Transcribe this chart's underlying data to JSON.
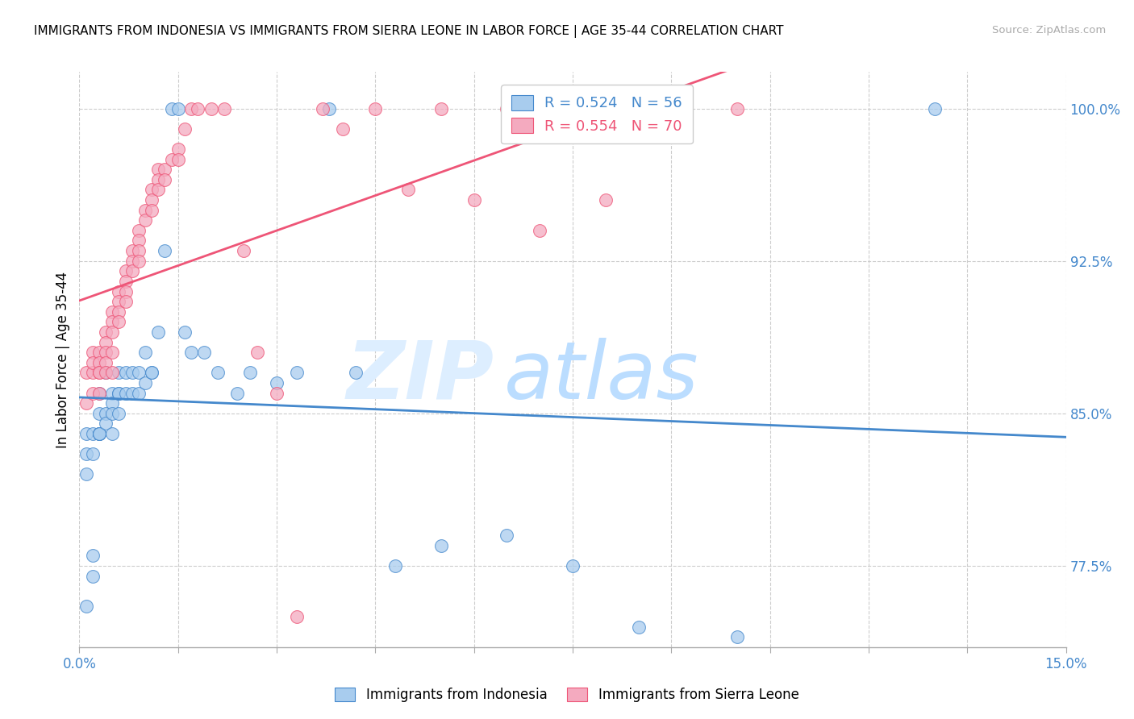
{
  "title": "IMMIGRANTS FROM INDONESIA VS IMMIGRANTS FROM SIERRA LEONE IN LABOR FORCE | AGE 35-44 CORRELATION CHART",
  "source": "Source: ZipAtlas.com",
  "ylabel": "In Labor Force | Age 35-44",
  "ylabel_right_ticks": [
    0.775,
    0.85,
    0.925,
    1.0
  ],
  "ylabel_right_labels": [
    "77.5%",
    "85.0%",
    "92.5%",
    "100.0%"
  ],
  "xmin": 0.0,
  "xmax": 0.15,
  "ymin": 0.735,
  "ymax": 1.018,
  "legend_indonesia": "R = 0.524   N = 56",
  "legend_sierraleone": "R = 0.554   N = 70",
  "legend_label_indonesia": "Immigrants from Indonesia",
  "legend_label_sierraleone": "Immigrants from Sierra Leone",
  "color_indonesia": "#A8CCEE",
  "color_sierraleone": "#F4AABF",
  "color_line_indonesia": "#4488CC",
  "color_line_sierraleone": "#EE5577",
  "watermark_zip": "ZIP",
  "watermark_atlas": "atlas",
  "watermark_color_zip": "#DDEEFF",
  "watermark_color_atlas": "#BBDDFF",
  "indonesia_x": [
    0.001,
    0.001,
    0.001,
    0.001,
    0.002,
    0.002,
    0.002,
    0.002,
    0.003,
    0.003,
    0.003,
    0.003,
    0.003,
    0.003,
    0.004,
    0.004,
    0.004,
    0.005,
    0.005,
    0.005,
    0.005,
    0.006,
    0.006,
    0.006,
    0.006,
    0.007,
    0.007,
    0.008,
    0.008,
    0.009,
    0.009,
    0.01,
    0.01,
    0.011,
    0.011,
    0.012,
    0.013,
    0.014,
    0.015,
    0.016,
    0.017,
    0.019,
    0.021,
    0.024,
    0.026,
    0.03,
    0.033,
    0.038,
    0.042,
    0.048,
    0.055,
    0.065,
    0.075,
    0.085,
    0.1,
    0.13
  ],
  "indonesia_y": [
    0.84,
    0.82,
    0.83,
    0.755,
    0.84,
    0.83,
    0.78,
    0.77,
    0.86,
    0.85,
    0.84,
    0.84,
    0.84,
    0.84,
    0.87,
    0.85,
    0.845,
    0.86,
    0.855,
    0.85,
    0.84,
    0.87,
    0.86,
    0.86,
    0.85,
    0.87,
    0.86,
    0.87,
    0.86,
    0.86,
    0.87,
    0.88,
    0.865,
    0.87,
    0.87,
    0.89,
    0.93,
    1.0,
    1.0,
    0.89,
    0.88,
    0.88,
    0.87,
    0.86,
    0.87,
    0.865,
    0.87,
    1.0,
    0.87,
    0.775,
    0.785,
    0.79,
    0.775,
    0.745,
    0.74,
    1.0
  ],
  "sierraleone_x": [
    0.001,
    0.001,
    0.002,
    0.002,
    0.002,
    0.002,
    0.003,
    0.003,
    0.003,
    0.003,
    0.003,
    0.004,
    0.004,
    0.004,
    0.004,
    0.004,
    0.005,
    0.005,
    0.005,
    0.005,
    0.005,
    0.006,
    0.006,
    0.006,
    0.006,
    0.007,
    0.007,
    0.007,
    0.007,
    0.008,
    0.008,
    0.008,
    0.009,
    0.009,
    0.009,
    0.009,
    0.01,
    0.01,
    0.011,
    0.011,
    0.011,
    0.012,
    0.012,
    0.012,
    0.013,
    0.013,
    0.014,
    0.015,
    0.015,
    0.016,
    0.017,
    0.018,
    0.02,
    0.022,
    0.025,
    0.027,
    0.03,
    0.033,
    0.037,
    0.04,
    0.045,
    0.05,
    0.055,
    0.06,
    0.065,
    0.07,
    0.075,
    0.08,
    0.09,
    0.1
  ],
  "sierraleone_y": [
    0.855,
    0.87,
    0.88,
    0.87,
    0.875,
    0.86,
    0.88,
    0.875,
    0.87,
    0.87,
    0.86,
    0.89,
    0.885,
    0.88,
    0.875,
    0.87,
    0.9,
    0.895,
    0.89,
    0.88,
    0.87,
    0.91,
    0.905,
    0.9,
    0.895,
    0.92,
    0.915,
    0.91,
    0.905,
    0.93,
    0.925,
    0.92,
    0.94,
    0.935,
    0.93,
    0.925,
    0.95,
    0.945,
    0.96,
    0.955,
    0.95,
    0.97,
    0.965,
    0.96,
    0.97,
    0.965,
    0.975,
    0.98,
    0.975,
    0.99,
    1.0,
    1.0,
    1.0,
    1.0,
    0.93,
    0.88,
    0.86,
    0.75,
    1.0,
    0.99,
    1.0,
    0.96,
    1.0,
    0.955,
    1.0,
    0.94,
    1.0,
    0.955,
    1.0,
    1.0
  ]
}
